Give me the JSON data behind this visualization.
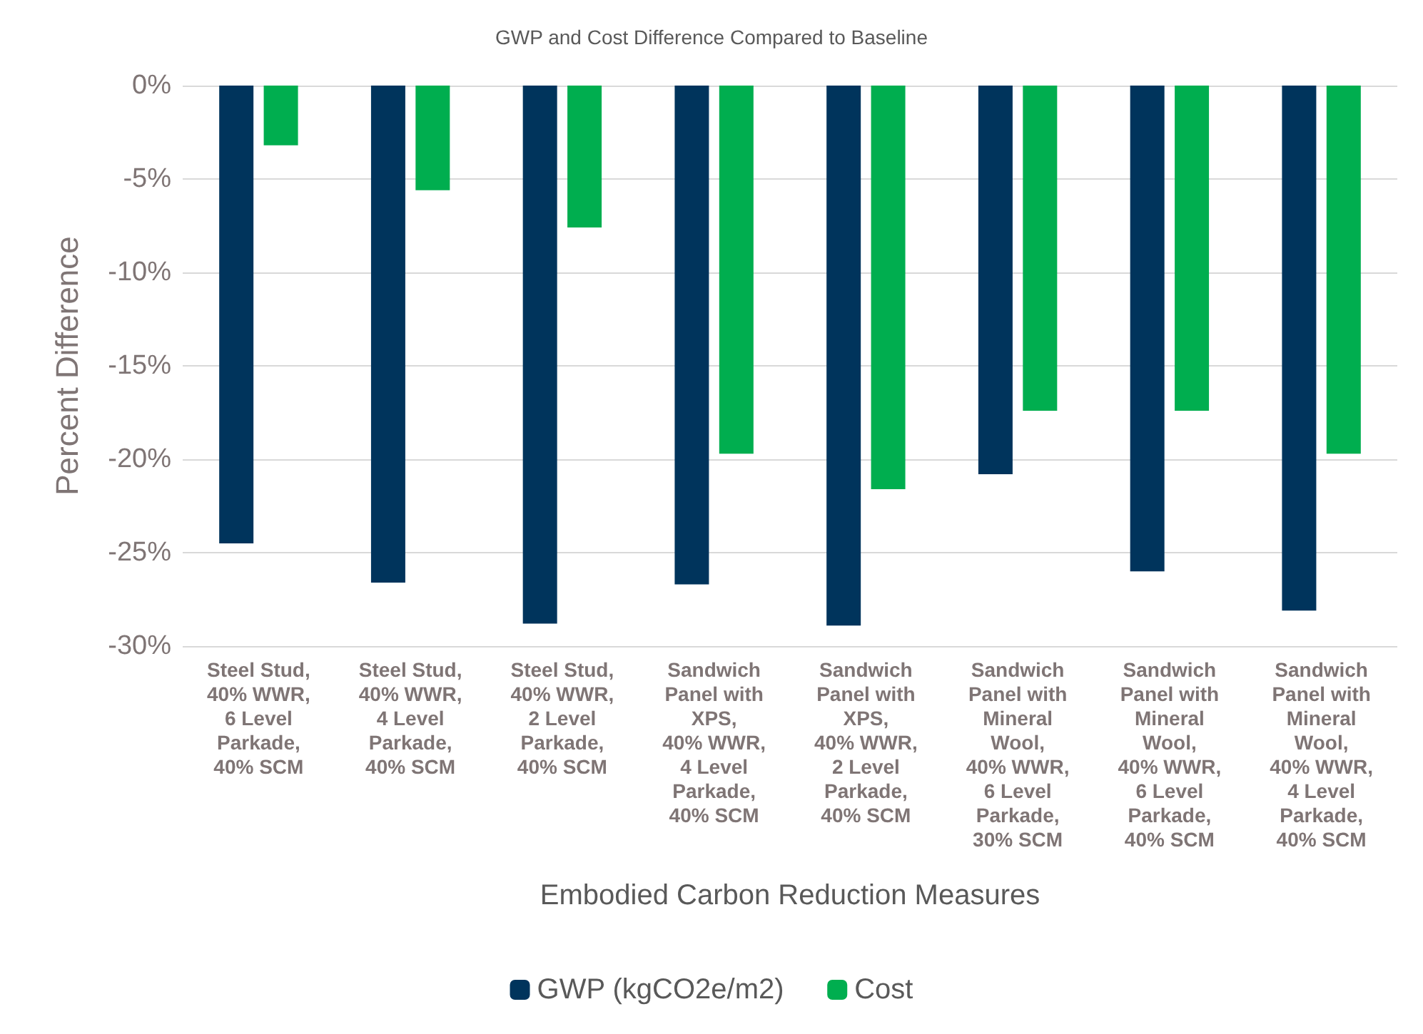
{
  "chart_data": {
    "type": "bar",
    "title": "GWP and Cost Difference Compared to Baseline",
    "xlabel": "Embodied Carbon Reduction Measures",
    "ylabel": "Percent Difference",
    "categories": [
      "Steel Stud,\n40% WWR,\n6 Level\nParkade,\n40% SCM",
      "Steel Stud,\n40% WWR,\n4 Level\nParkade,\n40% SCM",
      "Steel Stud,\n40% WWR,\n2 Level\nParkade,\n40% SCM",
      "Sandwich\nPanel with\nXPS,\n40% WWR,\n4 Level\nParkade,\n40% SCM",
      "Sandwich\nPanel with\nXPS,\n40% WWR,\n2 Level\nParkade,\n40% SCM",
      "Sandwich\nPanel with\nMineral\nWool,\n40% WWR,\n6 Level\nParkade,\n30% SCM",
      "Sandwich\nPanel with\nMineral\nWool,\n40% WWR,\n6 Level\nParkade,\n40% SCM",
      "Sandwich\nPanel with\nMineral\nWool,\n40% WWR,\n4 Level\nParkade,\n40% SCM"
    ],
    "series": [
      {
        "name": "GWP (kgCO2e/m2)",
        "color": "#00345c",
        "values": [
          -24.5,
          -26.6,
          -28.8,
          -26.7,
          -28.9,
          -20.8,
          -26.0,
          -28.1
        ]
      },
      {
        "name": "Cost",
        "color": "#00ae4f",
        "values": [
          -3.2,
          -5.6,
          -7.6,
          -19.7,
          -21.6,
          -17.4,
          -17.4,
          -19.7
        ]
      }
    ],
    "ylim": [
      -30,
      0
    ],
    "yticks": [
      {
        "value": -30,
        "label": "-30%"
      },
      {
        "value": -25,
        "label": "-25%"
      },
      {
        "value": -20,
        "label": "-20%"
      },
      {
        "value": -15,
        "label": "-15%"
      },
      {
        "value": -10,
        "label": "-10%"
      },
      {
        "value": -5,
        "label": "-5%"
      },
      {
        "value": 0,
        "label": "0%"
      }
    ],
    "grid": "y",
    "legend": "bottom"
  }
}
